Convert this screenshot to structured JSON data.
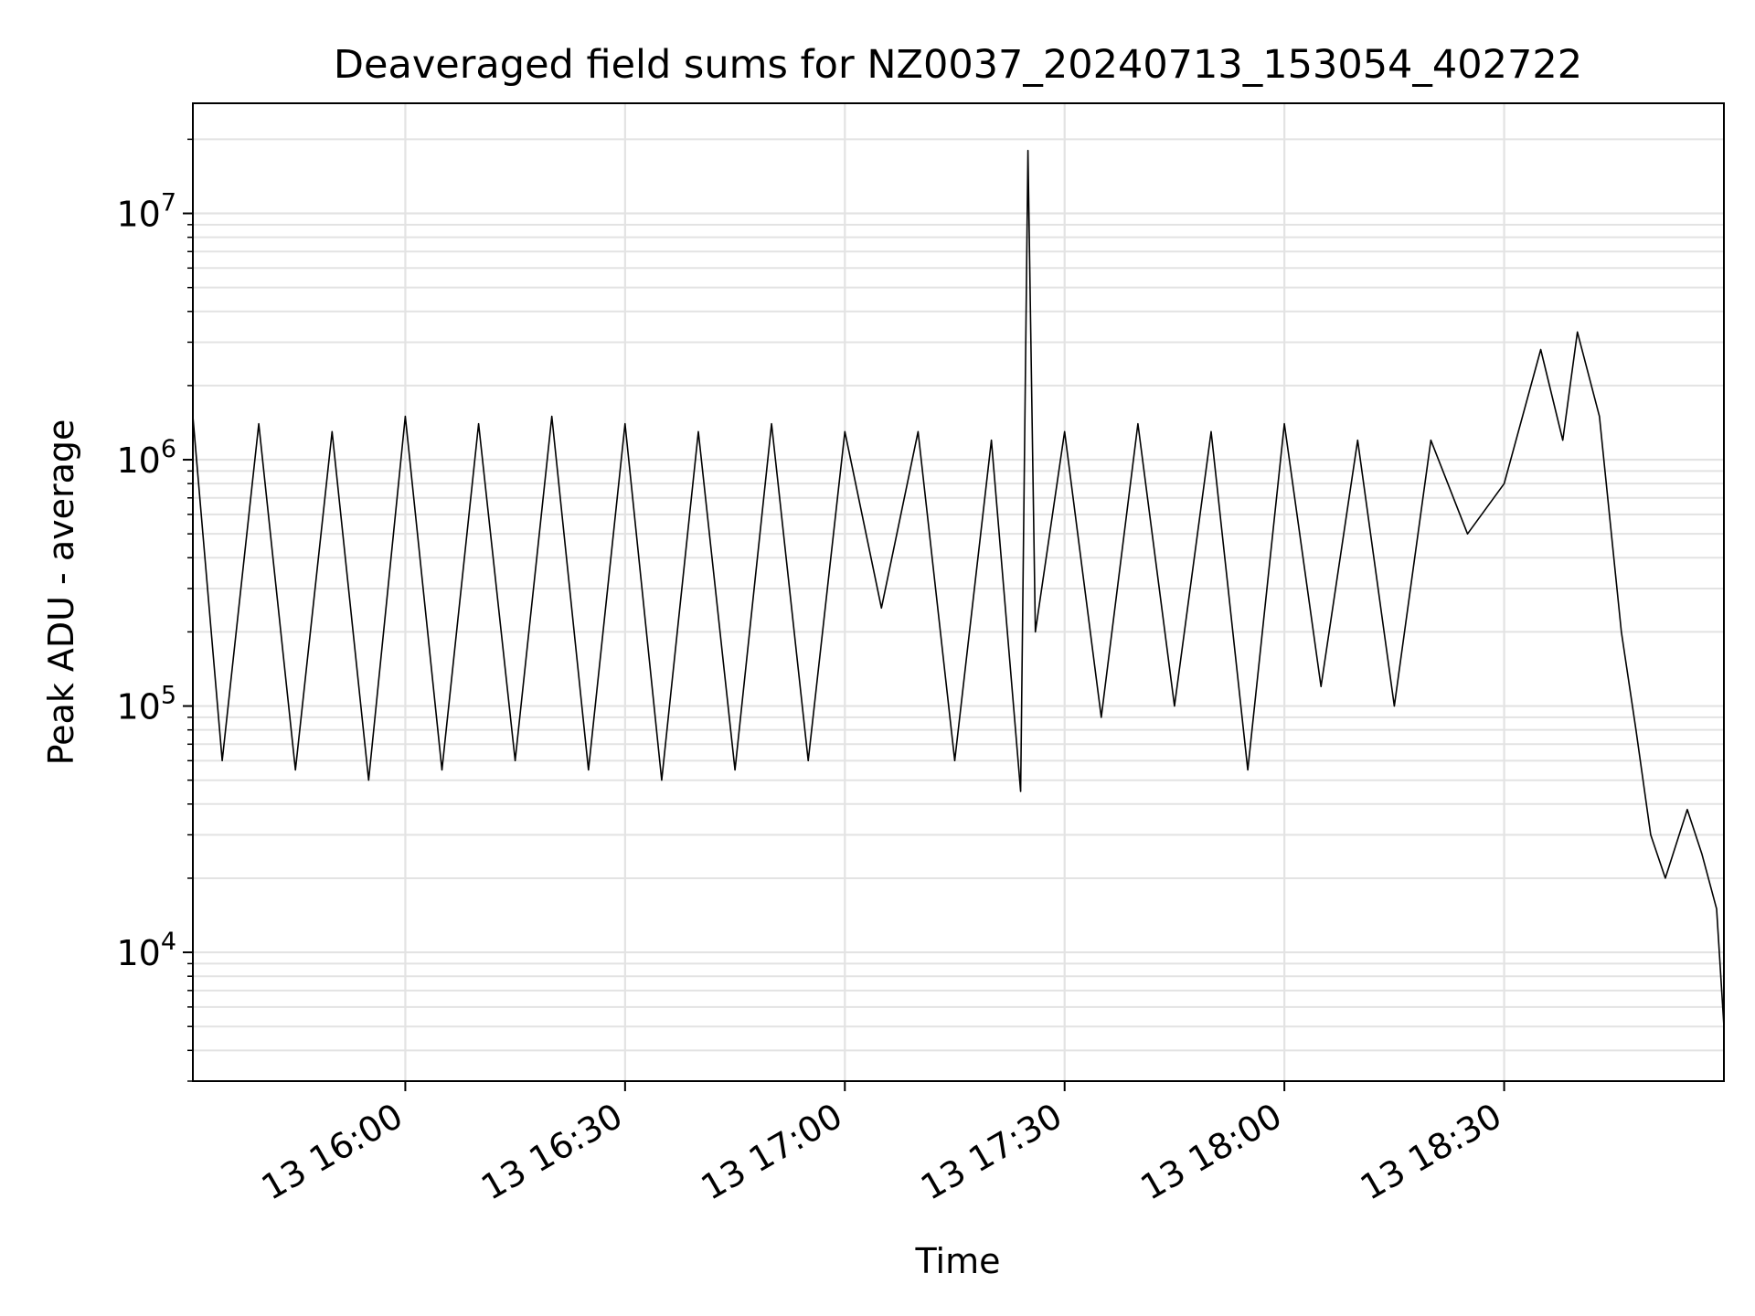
{
  "chart_data": {
    "type": "line",
    "title": "Deaveraged field sums for NZ0037_20240713_153054_402722",
    "xlabel": "Time",
    "ylabel": "Peak ADU - average",
    "x_axis": {
      "type": "time",
      "start": "2024-07-13 15:31:00",
      "end": "2024-07-13 19:00:00",
      "tick_labels": [
        "13 16:00",
        "13 16:30",
        "13 17:00",
        "13 17:30",
        "13 18:00",
        "13 18:30"
      ],
      "tick_times": [
        "2024-07-13 16:00",
        "2024-07-13 16:30",
        "2024-07-13 17:00",
        "2024-07-13 17:30",
        "2024-07-13 18:00",
        "2024-07-13 18:30"
      ]
    },
    "y_axis": {
      "scale": "log",
      "range": [
        3000,
        28000000
      ],
      "tick_values": [
        10000,
        100000,
        1000000,
        10000000
      ],
      "tick_labels": [
        {
          "base": "10",
          "exp": "4"
        },
        {
          "base": "10",
          "exp": "5"
        },
        {
          "base": "10",
          "exp": "6"
        },
        {
          "base": "10",
          "exp": "7"
        }
      ]
    },
    "grid": true,
    "series": [
      {
        "color": "#000000",
        "description": "Noisy signal fluctuating mostly between about 5e4 and 1.5e6 from 15:31 to ~18:25; a single spike to ~1.8e7 near 17:25; rise to ~2-3e6 around 18:35-18:40, then a sharp drop to ~3e4 by ~18:50 and falling below 1e4 near 19:00.",
        "points": [
          [
            "15:31",
            1500000
          ],
          [
            "15:35",
            60000
          ],
          [
            "15:40",
            1400000
          ],
          [
            "15:45",
            55000
          ],
          [
            "15:50",
            1300000
          ],
          [
            "15:55",
            50000
          ],
          [
            "16:00",
            1500000
          ],
          [
            "16:05",
            55000
          ],
          [
            "16:10",
            1400000
          ],
          [
            "16:15",
            60000
          ],
          [
            "16:20",
            1500000
          ],
          [
            "16:25",
            55000
          ],
          [
            "16:30",
            1400000
          ],
          [
            "16:35",
            50000
          ],
          [
            "16:40",
            1300000
          ],
          [
            "16:45",
            55000
          ],
          [
            "16:50",
            1400000
          ],
          [
            "16:55",
            60000
          ],
          [
            "17:00",
            1300000
          ],
          [
            "17:05",
            250000
          ],
          [
            "17:10",
            1300000
          ],
          [
            "17:15",
            60000
          ],
          [
            "17:20",
            1200000
          ],
          [
            "17:24",
            45000
          ],
          [
            "17:25",
            18000000
          ],
          [
            "17:26",
            200000
          ],
          [
            "17:30",
            1300000
          ],
          [
            "17:35",
            90000
          ],
          [
            "17:40",
            1400000
          ],
          [
            "17:45",
            100000
          ],
          [
            "17:50",
            1300000
          ],
          [
            "17:55",
            55000
          ],
          [
            "18:00",
            1400000
          ],
          [
            "18:05",
            120000
          ],
          [
            "18:10",
            1200000
          ],
          [
            "18:15",
            100000
          ],
          [
            "18:20",
            1200000
          ],
          [
            "18:25",
            500000
          ],
          [
            "18:30",
            800000
          ],
          [
            "18:35",
            2800000
          ],
          [
            "18:38",
            1200000
          ],
          [
            "18:40",
            3300000
          ],
          [
            "18:43",
            1500000
          ],
          [
            "18:46",
            200000
          ],
          [
            "18:48",
            80000
          ],
          [
            "18:50",
            30000
          ],
          [
            "18:52",
            20000
          ],
          [
            "18:55",
            38000
          ],
          [
            "18:57",
            25000
          ],
          [
            "18:59",
            15000
          ],
          [
            "19:00",
            5000
          ]
        ]
      }
    ]
  }
}
